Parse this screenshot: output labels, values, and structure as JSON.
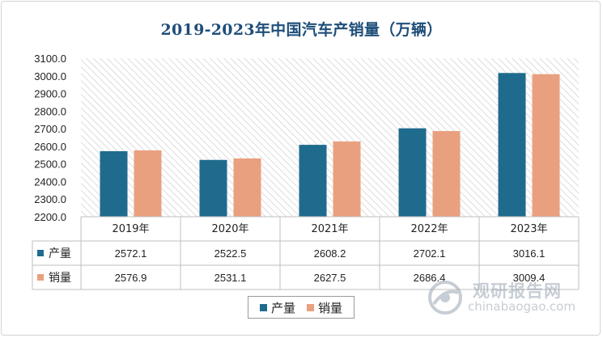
{
  "colors": {
    "production": "#1f6b8e",
    "sales": "#e9a07f",
    "title": "#1e4e79",
    "grid_line": "#bfbfbf"
  },
  "watermark": {
    "name": "观研报告网",
    "url": "chinabaogao.com"
  },
  "chart_data": {
    "type": "bar",
    "title": "2019-2023年中国汽车产销量（万辆）",
    "categories": [
      "2019年",
      "2020年",
      "2021年",
      "2022年",
      "2023年"
    ],
    "series": [
      {
        "name": "产量",
        "values": [
          "2572.1",
          "2522.5",
          "2608.2",
          "2702.1",
          "3016.1"
        ]
      },
      {
        "name": "销量",
        "values": [
          "2576.9",
          "2531.1",
          "2627.5",
          "2686.4",
          "3009.4"
        ]
      }
    ],
    "yaxis": {
      "min": 2200,
      "max": 3100,
      "step": 100,
      "tick_labels": [
        "2200.0",
        "2300.0",
        "2400.0",
        "2500.0",
        "2600.0",
        "2700.0",
        "2800.0",
        "2900.0",
        "3000.0",
        "3100.0"
      ]
    },
    "xlabel": "",
    "ylabel": "",
    "legend": "bottom-center",
    "data_table": true
  }
}
